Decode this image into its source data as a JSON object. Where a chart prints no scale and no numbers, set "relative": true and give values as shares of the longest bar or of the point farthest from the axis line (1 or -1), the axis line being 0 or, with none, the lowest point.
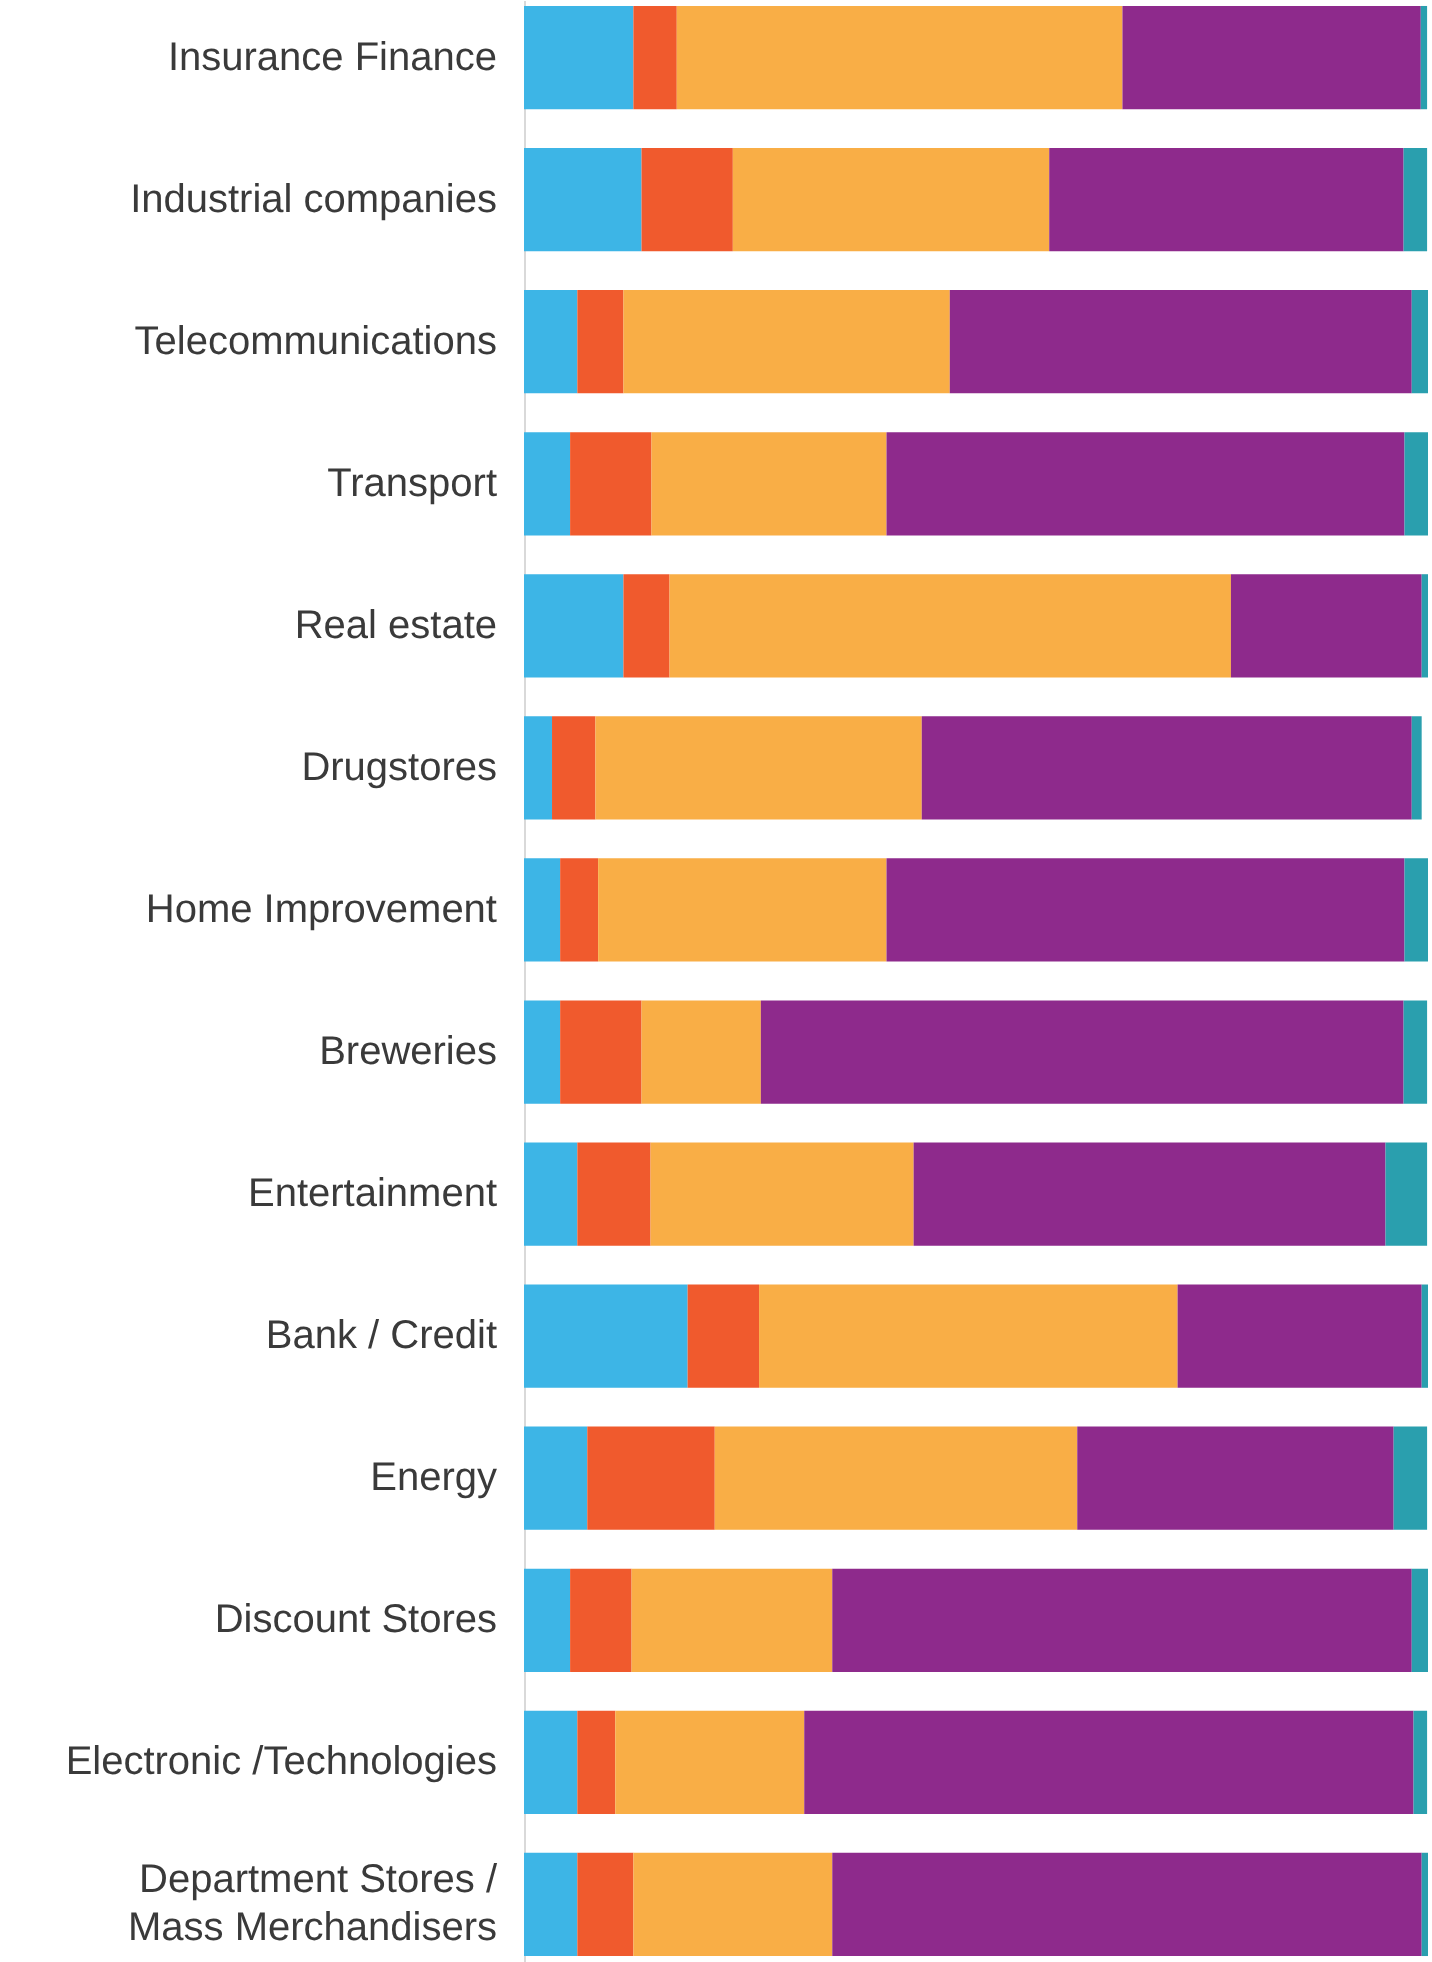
{
  "chart_data": {
    "type": "bar",
    "orientation": "horizontal",
    "stacked": true,
    "relative": true,
    "categories": [
      "Insurance Finance",
      "Industrial companies",
      "Telecommunications",
      "Transport",
      "Real estate",
      "Drugstores",
      "Home Improvement",
      "Breweries",
      "Entertainment",
      "Bank / Credit",
      "Energy",
      "Discount Stores",
      "Electronic /Technologies",
      "Department Stores / Mass Merchandisers"
    ],
    "series": [
      {
        "color": "#3db5e6",
        "values": [
          0.121,
          0.13,
          0.059,
          0.051,
          0.11,
          0.031,
          0.04,
          0.04,
          0.059,
          0.181,
          0.07,
          0.051,
          0.059,
          0.059
        ]
      },
      {
        "color": "#f05a2d",
        "values": [
          0.048,
          0.101,
          0.051,
          0.09,
          0.051,
          0.048,
          0.042,
          0.09,
          0.081,
          0.079,
          0.141,
          0.068,
          0.042,
          0.062
        ]
      },
      {
        "color": "#f9ae46",
        "values": [
          0.493,
          0.35,
          0.361,
          0.26,
          0.621,
          0.361,
          0.319,
          0.132,
          0.291,
          0.463,
          0.401,
          0.222,
          0.209,
          0.22
        ]
      },
      {
        "color": "#8e2a8c",
        "values": [
          0.33,
          0.392,
          0.511,
          0.573,
          0.211,
          0.542,
          0.573,
          0.711,
          0.522,
          0.27,
          0.35,
          0.641,
          0.674,
          0.652
        ]
      },
      {
        "color": "#2a9fae",
        "values": [
          0.007,
          0.026,
          0.018,
          0.026,
          0.007,
          0.011,
          0.026,
          0.026,
          0.046,
          0.007,
          0.037,
          0.018,
          0.015,
          0.007
        ]
      }
    ]
  }
}
